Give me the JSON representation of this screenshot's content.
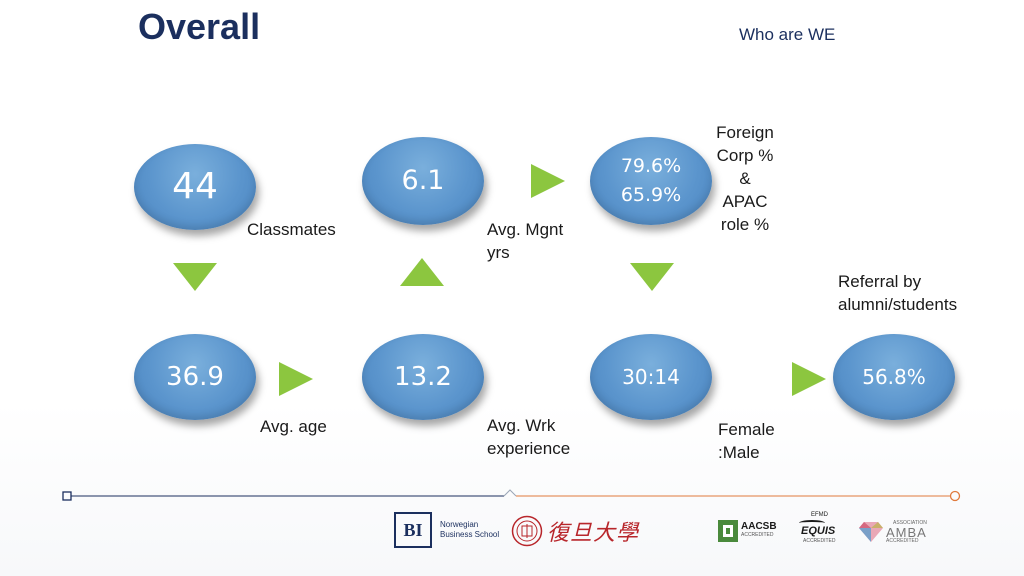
{
  "header": {
    "title": "Overall",
    "subtitle": "Who are WE"
  },
  "stats": {
    "classmates": {
      "value": "44",
      "label": "Classmates"
    },
    "mgmt": {
      "value": "6.1",
      "label_line1": "Avg. Mgnt",
      "label_line2": "yrs"
    },
    "foreign": {
      "value1": "79.6%",
      "value2": "65.9%",
      "label_lines": [
        "Foreign",
        "Corp %",
        "&",
        "APAC",
        "role %"
      ]
    },
    "age": {
      "value": "36.9",
      "label": "Avg. age"
    },
    "work": {
      "value": "13.2",
      "label_line1": "Avg. Wrk",
      "label_line2": "experience"
    },
    "gender": {
      "value": "30:14",
      "label_line1": "Female",
      "label_line2": ":Male"
    },
    "referral": {
      "value": "56.8%",
      "label_line1": "Referral by",
      "label_line2": "alumni/students"
    }
  },
  "logos": {
    "bi": {
      "mark": "BI",
      "line1": "Norwegian",
      "line2": "Business School"
    },
    "fudan": {
      "text": "復旦大學"
    },
    "aacsb": {
      "name": "AACSB",
      "sub": "ACCREDITED"
    },
    "equis": {
      "top": "EFMD",
      "name": "EQUIS",
      "sub": "ACCREDITED"
    },
    "amba": {
      "top": "ASSOCIATION",
      "name": "AMBA",
      "sub": "ACCREDITED"
    }
  },
  "colors": {
    "circle": "#5b95cd",
    "arrow": "#8cc63f",
    "title": "#1b2f5e",
    "line_left": "#1b2f5e",
    "line_right": "#e07a3c"
  }
}
